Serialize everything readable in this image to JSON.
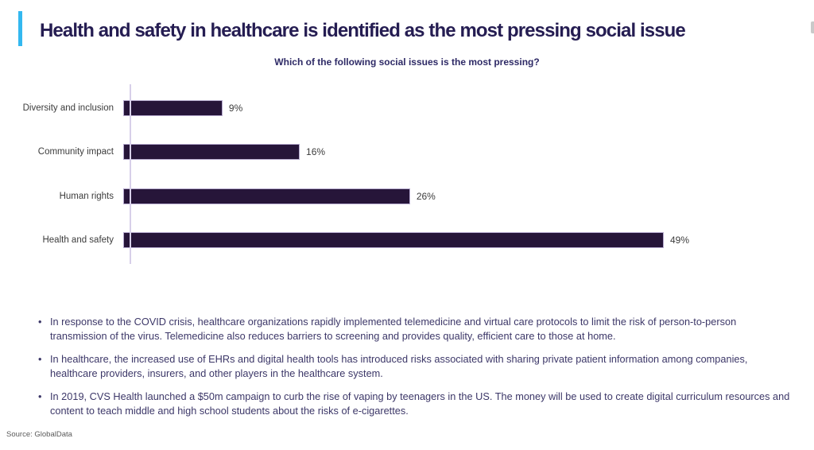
{
  "slide": {
    "title": "Health and safety in healthcare is identified as the most pressing social issue",
    "accent_color": "#33b8f0",
    "title_color": "#251d52"
  },
  "chart_data": {
    "type": "bar",
    "orientation": "horizontal",
    "title": "Which of the following social issues is the most pressing?",
    "categories": [
      "Diversity and inclusion",
      "Community impact",
      "Human rights",
      "Health and safety"
    ],
    "values": [
      9,
      16,
      26,
      49
    ],
    "value_labels": [
      "9%",
      "16%",
      "26%",
      "49%"
    ],
    "xlabel": "",
    "ylabel": "",
    "xlim": [
      0,
      49
    ],
    "grid": false,
    "legend": false,
    "bar_color": "#261539",
    "bar_border_color": "#b5a9ce",
    "axis_line_color": "#d7cfe9"
  },
  "bullets": [
    "In response to the COVID crisis, healthcare organizations rapidly implemented telemedicine and virtual care protocols to limit the risk of person-to-person transmission of the virus. Telemedicine also reduces barriers to screening and provides quality, efficient care to those at home.",
    "In healthcare, the increased use of EHRs and digital health tools has introduced risks associated with sharing private patient information among companies, healthcare providers, insurers, and other players in the healthcare system.",
    "In 2019, CVS Health launched a $50m campaign to curb the rise of vaping by teenagers in the US. The money will be used to create digital curriculum resources and content to teach middle and high school students about the risks of e-cigarettes."
  ],
  "footer": {
    "source": "Source: GlobalData"
  }
}
